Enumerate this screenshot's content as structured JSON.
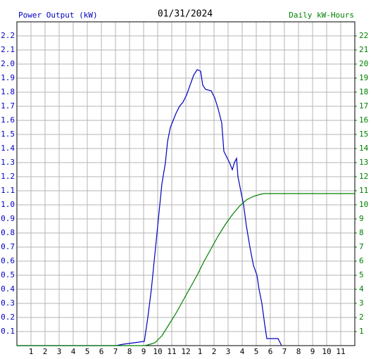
{
  "chart_data": {
    "type": "line",
    "title": "01/31/2024",
    "y_label": "Power Output (kW)",
    "y2_label": "Daily kW-Hours",
    "xlim": [
      0,
      24
    ],
    "xticks": [
      1,
      2,
      3,
      4,
      5,
      6,
      7,
      8,
      9,
      10,
      11,
      12,
      {
        "value": 13,
        "label": "1"
      },
      {
        "value": 14,
        "label": "2"
      },
      {
        "value": 15,
        "label": "3"
      },
      {
        "value": 16,
        "label": "4"
      },
      {
        "value": 17,
        "label": "5"
      },
      {
        "value": 18,
        "label": "6"
      },
      {
        "value": 19,
        "label": "7"
      },
      {
        "value": 20,
        "label": "8"
      },
      {
        "value": 21,
        "label": "9"
      },
      {
        "value": 22,
        "label": "10"
      },
      {
        "value": 23,
        "label": "11"
      }
    ],
    "ylim": [
      0,
      2.3
    ],
    "yticks": [
      0.1,
      0.2,
      0.3,
      0.4,
      0.5,
      0.6,
      0.7,
      0.8,
      0.9,
      {
        "value": 1.0,
        "label": "1.0"
      },
      1.1,
      1.2,
      1.3,
      1.4,
      1.5,
      1.6,
      1.7,
      1.8,
      1.9,
      {
        "value": 2.0,
        "label": "2.0"
      },
      2.1,
      2.2
    ],
    "y2lim": [
      0,
      23
    ],
    "y2ticks": [
      1,
      2,
      3,
      4,
      5,
      6,
      7,
      8,
      9,
      10,
      11,
      12,
      13,
      14,
      15,
      16,
      17,
      18,
      19,
      20,
      21,
      22
    ],
    "grid": true,
    "series": [
      {
        "name": "Power Output (kW)",
        "color": "#0000c0",
        "x": [
          0,
          7.05,
          7.55,
          8.3,
          9.05,
          9.3,
          9.55,
          9.8,
          10.05,
          10.3,
          10.55,
          10.7,
          10.9,
          11.1,
          11.3,
          11.55,
          11.8,
          12.05,
          12.3,
          12.55,
          12.8,
          13.05,
          13.2,
          13.4,
          13.8,
          14.05,
          14.3,
          14.55,
          14.7,
          14.9,
          15.1,
          15.3,
          15.45,
          15.6,
          15.7,
          15.9,
          16.1,
          16.3,
          16.55,
          16.8,
          17.05,
          17.2,
          17.4,
          17.6,
          17.75,
          18.05,
          18.55,
          18.8
        ],
        "values": [
          0,
          0,
          0.01,
          0.02,
          0.03,
          0.2,
          0.4,
          0.65,
          0.9,
          1.15,
          1.3,
          1.45,
          1.55,
          1.6,
          1.65,
          1.7,
          1.73,
          1.78,
          1.85,
          1.92,
          1.96,
          1.95,
          1.85,
          1.82,
          1.81,
          1.76,
          1.68,
          1.58,
          1.38,
          1.34,
          1.3,
          1.25,
          1.3,
          1.33,
          1.2,
          1.1,
          1.0,
          0.85,
          0.7,
          0.57,
          0.5,
          0.4,
          0.3,
          0.15,
          0.05,
          0.05,
          0.05,
          0
        ]
      },
      {
        "name": "Daily kW-Hours",
        "color": "#008000",
        "axis": "y2",
        "x": [
          0,
          9.05,
          9.3,
          9.8,
          10.3,
          10.8,
          11.3,
          11.8,
          12.3,
          12.8,
          13.3,
          13.8,
          14.3,
          14.8,
          15.3,
          15.8,
          16.3,
          16.8,
          17.3,
          17.55,
          24
        ],
        "values": [
          0,
          0,
          0.05,
          0.2,
          0.7,
          1.5,
          2.3,
          3.2,
          4.1,
          5.0,
          6.0,
          6.9,
          7.8,
          8.6,
          9.3,
          9.9,
          10.35,
          10.6,
          10.75,
          10.8,
          10.8
        ]
      }
    ]
  }
}
